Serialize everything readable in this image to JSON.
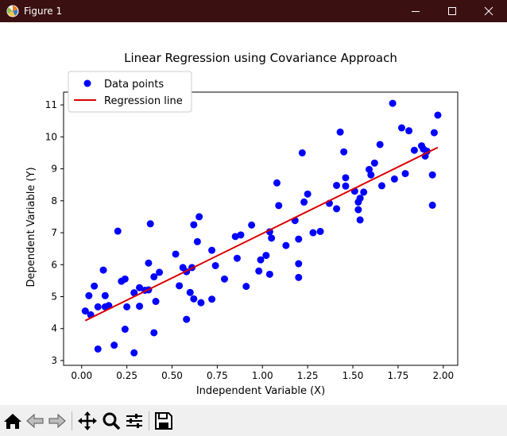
{
  "window": {
    "title": "Figure 1",
    "icons": {
      "app": "matplotlib-icon",
      "minimize": "minimize-icon",
      "maximize": "maximize-icon",
      "close": "close-icon"
    }
  },
  "toolbar": {
    "buttons": [
      {
        "name": "home-button",
        "icon": "home-icon"
      },
      {
        "name": "back-button",
        "icon": "back-arrow-icon"
      },
      {
        "name": "forward-button",
        "icon": "forward-arrow-icon"
      },
      {
        "name": "pan-button",
        "icon": "pan-icon"
      },
      {
        "name": "zoom-button",
        "icon": "zoom-icon"
      },
      {
        "name": "configure-subplots-button",
        "icon": "sliders-icon"
      },
      {
        "name": "save-button",
        "icon": "save-icon"
      }
    ]
  },
  "chart_data": {
    "type": "scatter",
    "title": "Linear Regression using Covariance Approach",
    "xlabel": "Independent Variable (X)",
    "ylabel": "Dependent Variable (Y)",
    "xlim": [
      -0.1,
      2.08
    ],
    "ylim": [
      2.85,
      11.4
    ],
    "xticks": [
      "0.00",
      "0.25",
      "0.50",
      "0.75",
      "1.00",
      "1.25",
      "1.50",
      "1.75",
      "2.00"
    ],
    "yticks": [
      "3",
      "4",
      "5",
      "6",
      "7",
      "8",
      "9",
      "10",
      "11"
    ],
    "grid": false,
    "legend": {
      "position": "top-left",
      "entries": [
        "Data points",
        "Regression line"
      ]
    },
    "colors": {
      "points": "#0000ff",
      "line": "#dd0000"
    },
    "series": [
      {
        "name": "Data points",
        "points": [
          [
            0.02,
            4.55
          ],
          [
            0.04,
            5.03
          ],
          [
            0.05,
            4.43
          ],
          [
            0.07,
            5.33
          ],
          [
            0.09,
            4.68
          ],
          [
            0.09,
            3.36
          ],
          [
            0.12,
            5.83
          ],
          [
            0.13,
            5.03
          ],
          [
            0.13,
            4.68
          ],
          [
            0.15,
            4.72
          ],
          [
            0.18,
            3.48
          ],
          [
            0.2,
            7.05
          ],
          [
            0.22,
            5.48
          ],
          [
            0.24,
            3.98
          ],
          [
            0.24,
            5.55
          ],
          [
            0.25,
            4.68
          ],
          [
            0.29,
            5.12
          ],
          [
            0.29,
            3.24
          ],
          [
            0.32,
            5.28
          ],
          [
            0.32,
            4.7
          ],
          [
            0.35,
            5.2
          ],
          [
            0.37,
            6.05
          ],
          [
            0.37,
            5.21
          ],
          [
            0.38,
            7.28
          ],
          [
            0.4,
            5.62
          ],
          [
            0.4,
            3.87
          ],
          [
            0.41,
            4.85
          ],
          [
            0.43,
            5.76
          ],
          [
            0.52,
            6.33
          ],
          [
            0.54,
            5.34
          ],
          [
            0.56,
            5.91
          ],
          [
            0.58,
            5.78
          ],
          [
            0.58,
            4.29
          ],
          [
            0.6,
            5.13
          ],
          [
            0.61,
            5.91
          ],
          [
            0.62,
            4.93
          ],
          [
            0.62,
            7.25
          ],
          [
            0.64,
            6.72
          ],
          [
            0.65,
            7.5
          ],
          [
            0.66,
            4.81
          ],
          [
            0.72,
            4.92
          ],
          [
            0.72,
            6.45
          ],
          [
            0.74,
            5.97
          ],
          [
            0.79,
            5.55
          ],
          [
            0.85,
            6.88
          ],
          [
            0.86,
            6.2
          ],
          [
            0.88,
            6.93
          ],
          [
            0.91,
            5.32
          ],
          [
            0.94,
            7.24
          ],
          [
            0.98,
            5.8
          ],
          [
            0.99,
            6.15
          ],
          [
            1.02,
            6.29
          ],
          [
            1.04,
            7.03
          ],
          [
            1.05,
            6.83
          ],
          [
            1.04,
            5.7
          ],
          [
            1.08,
            8.56
          ],
          [
            1.09,
            7.85
          ],
          [
            1.13,
            6.6
          ],
          [
            1.18,
            7.38
          ],
          [
            1.2,
            6.03
          ],
          [
            1.2,
            5.6
          ],
          [
            1.2,
            6.8
          ],
          [
            1.22,
            9.5
          ],
          [
            1.23,
            7.96
          ],
          [
            1.25,
            8.21
          ],
          [
            1.28,
            7.0
          ],
          [
            1.32,
            7.04
          ],
          [
            1.37,
            7.92
          ],
          [
            1.41,
            7.75
          ],
          [
            1.41,
            8.48
          ],
          [
            1.43,
            10.15
          ],
          [
            1.45,
            9.53
          ],
          [
            1.46,
            8.72
          ],
          [
            1.46,
            8.46
          ],
          [
            1.51,
            8.3
          ],
          [
            1.53,
            7.96
          ],
          [
            1.53,
            7.72
          ],
          [
            1.54,
            8.08
          ],
          [
            1.54,
            7.4
          ],
          [
            1.56,
            8.27
          ],
          [
            1.59,
            8.98
          ],
          [
            1.6,
            8.81
          ],
          [
            1.62,
            9.18
          ],
          [
            1.65,
            9.76
          ],
          [
            1.66,
            8.47
          ],
          [
            1.72,
            11.05
          ],
          [
            1.73,
            8.68
          ],
          [
            1.77,
            10.28
          ],
          [
            1.79,
            8.85
          ],
          [
            1.81,
            10.19
          ],
          [
            1.84,
            9.58
          ],
          [
            1.88,
            9.72
          ],
          [
            1.89,
            9.62
          ],
          [
            1.9,
            9.4
          ],
          [
            1.91,
            9.55
          ],
          [
            1.94,
            7.86
          ],
          [
            1.94,
            8.81
          ],
          [
            1.95,
            10.13
          ],
          [
            1.97,
            10.68
          ]
        ]
      },
      {
        "name": "Regression line",
        "line": [
          [
            0.02,
            4.25
          ],
          [
            1.97,
            9.67
          ]
        ]
      }
    ]
  }
}
